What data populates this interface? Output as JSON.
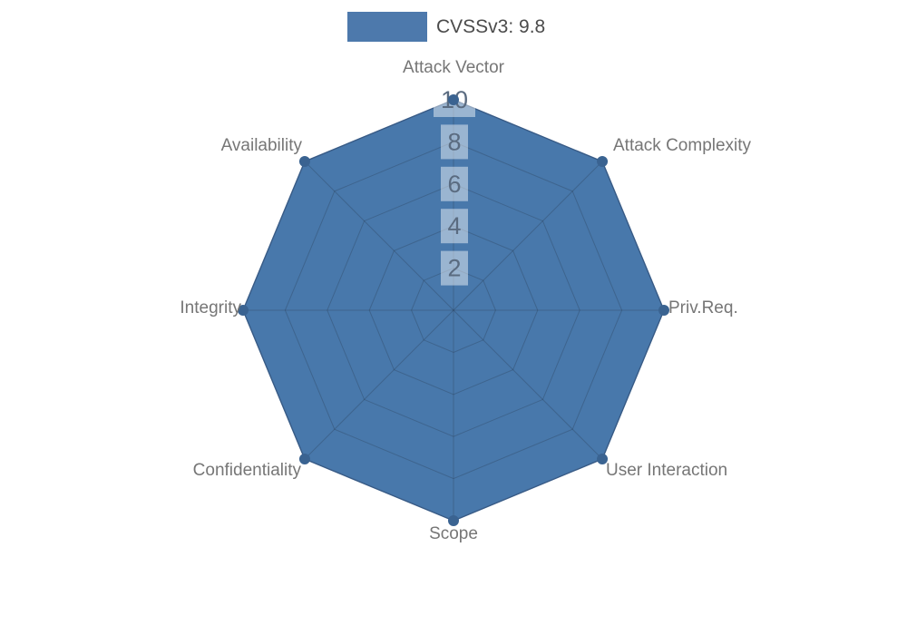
{
  "chart_data": {
    "type": "radar",
    "title": "",
    "legend": {
      "label": "CVSSv3: 9.8",
      "position": "top-center"
    },
    "categories": [
      "Attack Vector",
      "Attack Complexity",
      "Priv.Req.",
      "User Interaction",
      "Scope",
      "Confidentiality",
      "Integrity",
      "Availability"
    ],
    "series": [
      {
        "name": "CVSSv3: 9.8",
        "values": [
          10,
          10,
          10,
          10,
          10,
          10,
          10,
          10
        ]
      }
    ],
    "radial_ticks": [
      "2",
      "4",
      "6",
      "8",
      "10"
    ],
    "rmin": 0,
    "rmax": 10,
    "grid": "on",
    "colors": {
      "fill": "#4878ab",
      "stroke": "#41699a",
      "marker": "#3a6391",
      "grid_line": "rgba(35,50,70,0.28)",
      "tick_text": "#5a6b80",
      "tick_bg": "rgba(255,255,255,0.45)",
      "axis_label": "#767676",
      "legend_text": "#4b4b4b",
      "legend_swatch": "#4d79ac",
      "background": "#ffffff"
    }
  }
}
